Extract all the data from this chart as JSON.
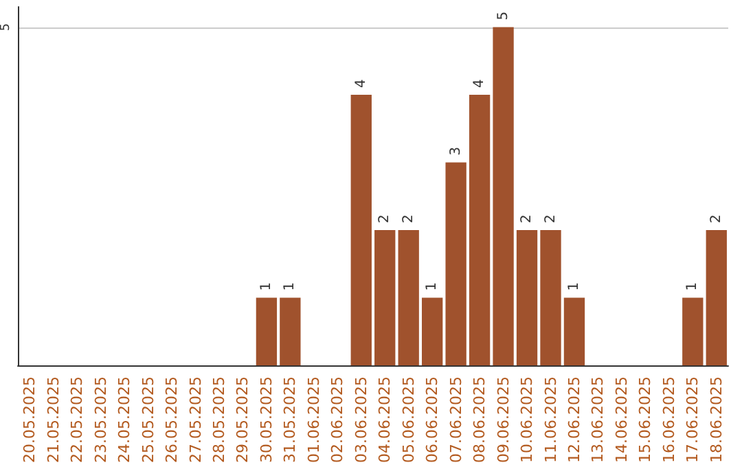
{
  "chart_data": {
    "type": "bar",
    "categories": [
      "20.05.2025",
      "21.05.2025",
      "22.05.2025",
      "23.05.2025",
      "24.05.2025",
      "25.05.2025",
      "26.05.2025",
      "27.05.2025",
      "28.05.2025",
      "29.05.2025",
      "30.05.2025",
      "31.05.2025",
      "01.06.2025",
      "02.06.2025",
      "03.06.2025",
      "04.06.2025",
      "05.06.2025",
      "06.06.2025",
      "07.06.2025",
      "08.06.2025",
      "09.06.2025",
      "10.06.2025",
      "11.06.2025",
      "12.06.2025",
      "13.06.2025",
      "14.06.2025",
      "15.06.2025",
      "16.06.2025",
      "17.06.2025",
      "18.06.2025"
    ],
    "values": [
      0,
      0,
      0,
      0,
      0,
      0,
      0,
      0,
      0,
      0,
      1,
      1,
      0,
      0,
      4,
      2,
      2,
      1,
      3,
      4,
      5,
      2,
      2,
      1,
      0,
      0,
      0,
      0,
      1,
      2
    ],
    "value_labels": [
      null,
      null,
      null,
      null,
      null,
      null,
      null,
      null,
      null,
      null,
      "1",
      "1",
      null,
      null,
      "4",
      "2",
      "2",
      "1",
      "3",
      "4",
      "5",
      "2",
      "2",
      "1",
      null,
      null,
      null,
      null,
      "1",
      "2"
    ],
    "color": "#a0522d",
    "ylim": [
      0,
      5.3
    ],
    "yticks": [
      5
    ],
    "grid": "y"
  }
}
